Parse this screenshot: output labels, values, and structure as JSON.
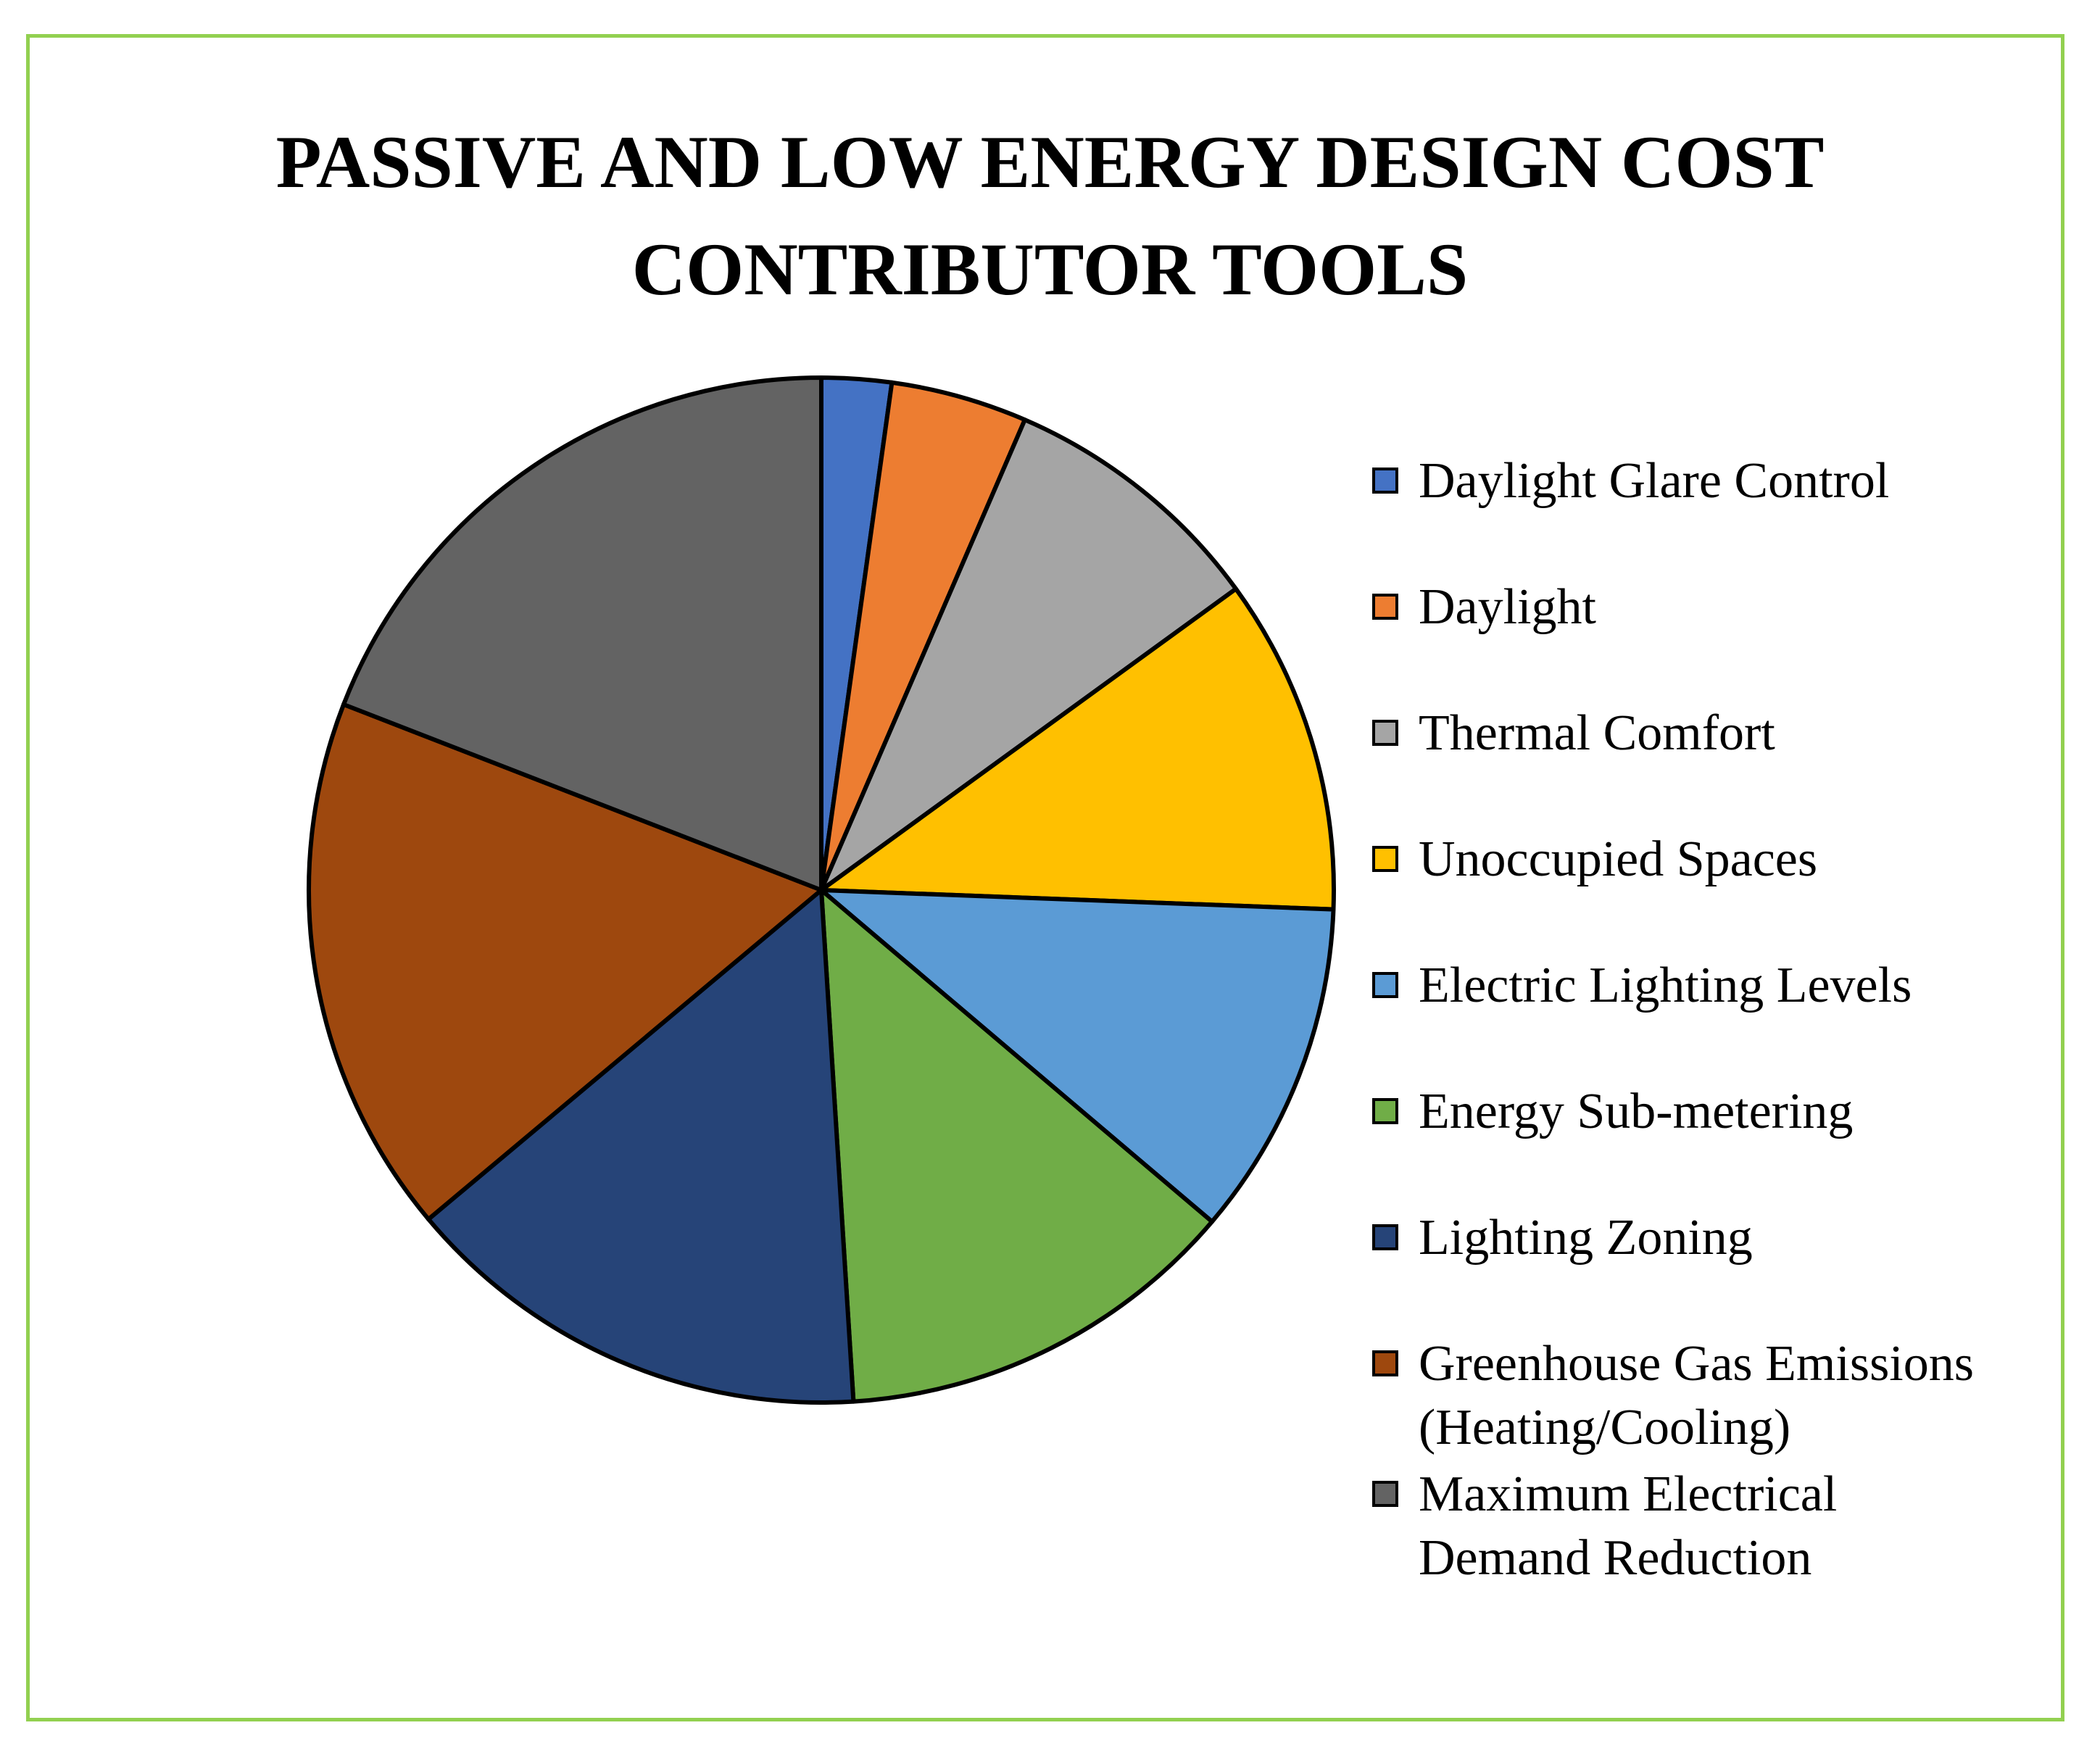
{
  "chart_data": {
    "type": "pie",
    "title": "PASSIVE AND LOW ENERGY DESIGN COST CONTRIBUTOR TOOLS",
    "title_lines": [
      "PASSIVE AND LOW ENERGY DESIGN COST",
      "CONTRIBUTOR TOOLS"
    ],
    "start_angle_deg": 0,
    "direction": "clockwise",
    "legend_position": "right",
    "slices": [
      {
        "label": "Daylight Glare Control",
        "value": 2.2,
        "color": "#4472c4"
      },
      {
        "label": "Daylight",
        "value": 4.3,
        "color": "#ed7d31"
      },
      {
        "label": "Thermal Comfort",
        "value": 8.5,
        "color": "#a5a5a5"
      },
      {
        "label": "Unoccupied Spaces",
        "value": 10.6,
        "color": "#ffc000"
      },
      {
        "label": "Electric Lighting Levels",
        "value": 10.6,
        "color": "#5b9bd5"
      },
      {
        "label": "Energy Sub-metering",
        "value": 12.8,
        "color": "#70ad47"
      },
      {
        "label": "Lighting Zoning",
        "value": 14.9,
        "color": "#264478"
      },
      {
        "label": "Greenhouse Gas Emissions (Heating/Cooling)",
        "label_lines": [
          "Greenhouse Gas Emissions",
          "(Heating/Cooling)"
        ],
        "value": 17.0,
        "color": "#9e480e"
      },
      {
        "label": "Maximum Electrical Demand Reduction",
        "label_lines": [
          "Maximum Electrical",
          "Demand Reduction"
        ],
        "value": 19.1,
        "color": "#636363"
      }
    ]
  }
}
